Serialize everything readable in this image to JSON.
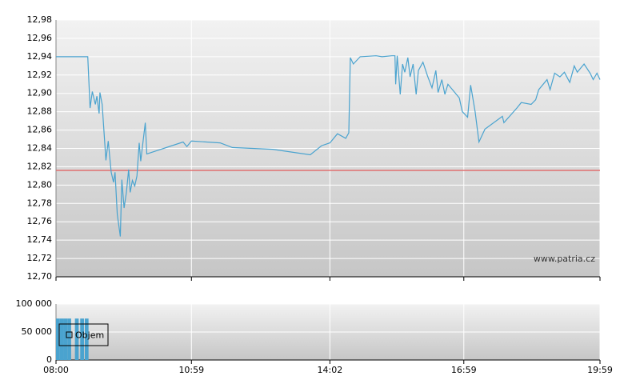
{
  "chart_data": [
    {
      "type": "line",
      "color": "#4aa3cf",
      "watermark": "www.patria.cz",
      "reference_line": {
        "value": 12.816,
        "color": "#e07070"
      },
      "grid": true,
      "xlim": [
        "08:00",
        "19:59"
      ],
      "xticks": [
        "08:00",
        "10:59",
        "14:02",
        "16:59",
        "19:59"
      ],
      "ylim": [
        12.7,
        12.98
      ],
      "yticks": [
        {
          "value": 12.7,
          "label": "12,70"
        },
        {
          "value": 12.72,
          "label": "12,72"
        },
        {
          "value": 12.74,
          "label": "12,74"
        },
        {
          "value": 12.76,
          "label": "12,76"
        },
        {
          "value": 12.78,
          "label": "12,78"
        },
        {
          "value": 12.8,
          "label": "12,80"
        },
        {
          "value": 12.82,
          "label": "12,82"
        },
        {
          "value": 12.84,
          "label": "12,84"
        },
        {
          "value": 12.86,
          "label": "12,86"
        },
        {
          "value": 12.88,
          "label": "12,88"
        },
        {
          "value": 12.9,
          "label": "12,90"
        },
        {
          "value": 12.92,
          "label": "12,92"
        },
        {
          "value": 12.94,
          "label": "12,94"
        },
        {
          "value": 12.96,
          "label": "12,96"
        },
        {
          "value": 12.98,
          "label": "12,98"
        }
      ],
      "x": [
        "08:00",
        "08:42",
        "08:45",
        "08:48",
        "08:52",
        "08:54",
        "08:57",
        "08:58",
        "09:01",
        "09:06",
        "09:09",
        "09:13",
        "09:16",
        "09:18",
        "09:21",
        "09:25",
        "09:27",
        "09:30",
        "09:33",
        "09:36",
        "09:38",
        "09:41",
        "09:44",
        "09:47",
        "09:50",
        "09:52",
        "09:58",
        "10:00",
        "10:48",
        "10:53",
        "10:59",
        "11:37",
        "11:53",
        "12:46",
        "13:36",
        "13:51",
        "14:02",
        "14:12",
        "14:23",
        "14:27",
        "14:29",
        "14:33",
        "14:42",
        "15:03",
        "15:11",
        "15:24",
        "15:28",
        "15:29",
        "15:31",
        "15:35",
        "15:38",
        "15:41",
        "15:45",
        "15:48",
        "15:52",
        "15:56",
        "15:59",
        "16:05",
        "16:11",
        "16:17",
        "16:22",
        "16:25",
        "16:30",
        "16:34",
        "16:38",
        "16:44",
        "16:53",
        "16:57",
        "17:04",
        "17:08",
        "17:14",
        "17:19",
        "17:27",
        "17:50",
        "17:52",
        "18:09",
        "18:15",
        "18:28",
        "18:34",
        "18:38",
        "18:49",
        "18:53",
        "18:59",
        "19:06",
        "19:12",
        "19:19",
        "19:25",
        "19:29",
        "19:38",
        "19:46",
        "19:50",
        "19:55",
        "19:59"
      ],
      "values": [
        12.94,
        12.94,
        12.884,
        12.902,
        12.888,
        12.897,
        12.878,
        12.901,
        12.888,
        12.827,
        12.848,
        12.814,
        12.803,
        12.814,
        12.768,
        12.744,
        12.806,
        12.775,
        12.792,
        12.817,
        12.792,
        12.805,
        12.799,
        12.81,
        12.846,
        12.826,
        12.868,
        12.834,
        12.847,
        12.842,
        12.848,
        12.846,
        12.841,
        12.839,
        12.833,
        12.843,
        12.846,
        12.856,
        12.851,
        12.857,
        12.939,
        12.932,
        12.94,
        12.941,
        12.94,
        12.941,
        12.941,
        12.91,
        12.941,
        12.899,
        12.932,
        12.923,
        12.939,
        12.918,
        12.932,
        12.899,
        12.925,
        12.934,
        12.919,
        12.906,
        12.925,
        12.901,
        12.915,
        12.899,
        12.91,
        12.904,
        12.895,
        12.88,
        12.874,
        12.909,
        12.88,
        12.847,
        12.861,
        12.875,
        12.868,
        12.884,
        12.89,
        12.888,
        12.893,
        12.904,
        12.915,
        12.904,
        12.922,
        12.918,
        12.923,
        12.912,
        12.93,
        12.923,
        12.932,
        12.922,
        12.915,
        12.922,
        12.915
      ]
    },
    {
      "type": "bar",
      "legend": "upper left",
      "grid": true,
      "xlim": [
        "08:00",
        "19:59"
      ],
      "xticks": [
        "08:00",
        "10:59",
        "14:02",
        "16:59",
        "19:59"
      ],
      "ylim": [
        0,
        100000
      ],
      "yticks": [
        0,
        {
          "value": 50000,
          "label": "50 000"
        },
        {
          "value": 100000,
          "label": "100 000"
        }
      ],
      "series": [
        {
          "name": "Objem",
          "color": "#4aa3cf",
          "x": [
            "08:00",
            "08:05",
            "08:10",
            "08:15",
            "08:25",
            "08:32",
            "08:38"
          ],
          "values": [
            74000,
            74000,
            74000,
            74000,
            74000,
            74000,
            74000
          ]
        }
      ]
    }
  ]
}
